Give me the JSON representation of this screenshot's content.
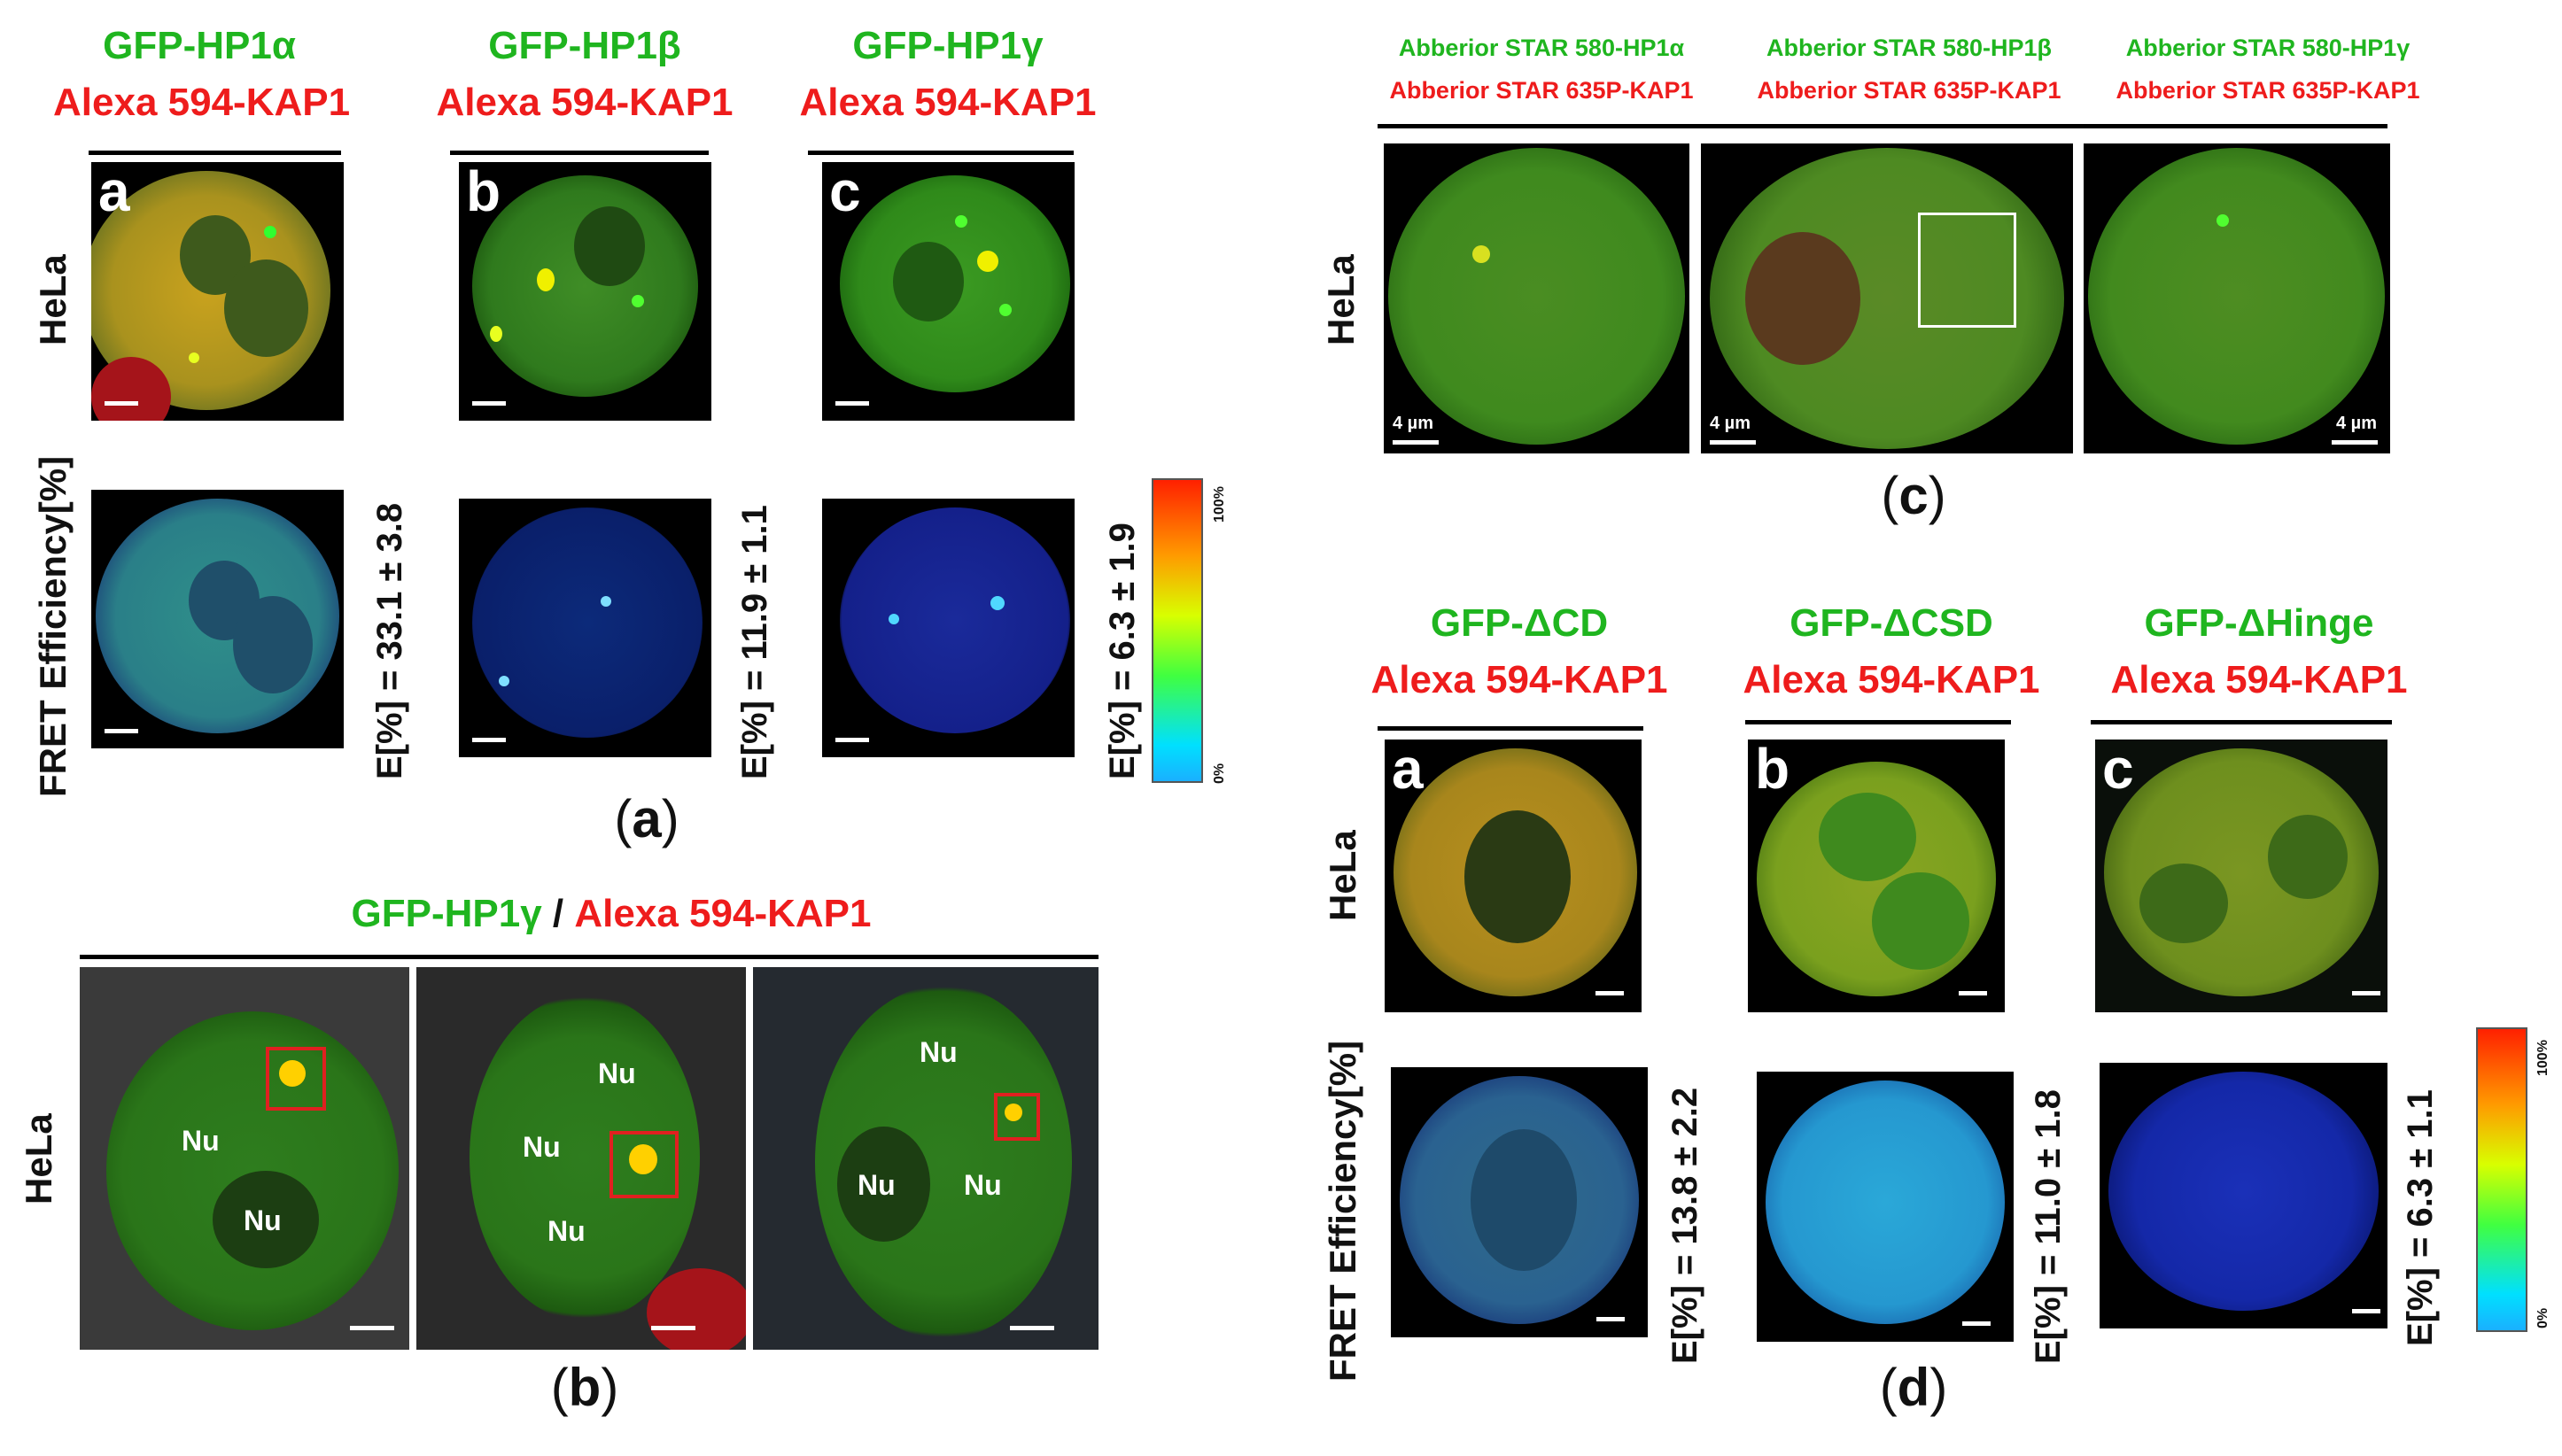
{
  "panel_a": {
    "headers": [
      {
        "green": "GFP-HP1α",
        "red": "Alexa 594-KAP1"
      },
      {
        "green": "GFP-HP1β",
        "red": "Alexa 594-KAP1"
      },
      {
        "green": "GFP-HP1γ",
        "red": "Alexa 594-KAP1"
      }
    ],
    "row_label_top": "HeLa",
    "row_label_bottom": "FRET Efficiency[%]",
    "letters": [
      "a",
      "b",
      "c"
    ],
    "efficiencies": [
      "E[%] = 33.1 ± 3.8",
      "E[%] = 11.9 ± 1.1",
      "E[%] = 6.3 ± 1.9"
    ],
    "colorbar": {
      "max": "100%",
      "min": "0%"
    },
    "label": "a"
  },
  "panel_b": {
    "header_green": "GFP-HP1γ",
    "header_sep": " / ",
    "header_red": "Alexa 594-KAP1",
    "row_label": "HeLa",
    "nu": "Nu",
    "label": "b"
  },
  "panel_c": {
    "headers": [
      {
        "green": "Abberior STAR 580-HP1α",
        "red": "Abberior STAR 635P-KAP1"
      },
      {
        "green": "Abberior STAR 580-HP1β",
        "red": "Abberior STAR 635P-KAP1"
      },
      {
        "green": "Abberior STAR 580-HP1γ",
        "red": "Abberior STAR 635P-KAP1"
      }
    ],
    "row_label": "HeLa",
    "scale": "4 µm",
    "label": "c"
  },
  "panel_d": {
    "headers": [
      {
        "green": "GFP-ΔCD",
        "red": "Alexa 594-KAP1"
      },
      {
        "green": "GFP-ΔCSD",
        "red": "Alexa 594-KAP1"
      },
      {
        "green": "GFP-ΔHinge",
        "red": "Alexa 594-KAP1"
      }
    ],
    "row_label_top": "HeLa",
    "row_label_bottom": "FRET Efficiency[%]",
    "letters": [
      "a",
      "b",
      "c"
    ],
    "efficiencies": [
      "E[%] = 13.8 ± 2.2",
      "E[%] = 11.0 ± 1.8",
      "E[%] = 6.3 ± 1.1"
    ],
    "colorbar": {
      "max": "100%",
      "min": "0%"
    },
    "label": "d"
  }
}
